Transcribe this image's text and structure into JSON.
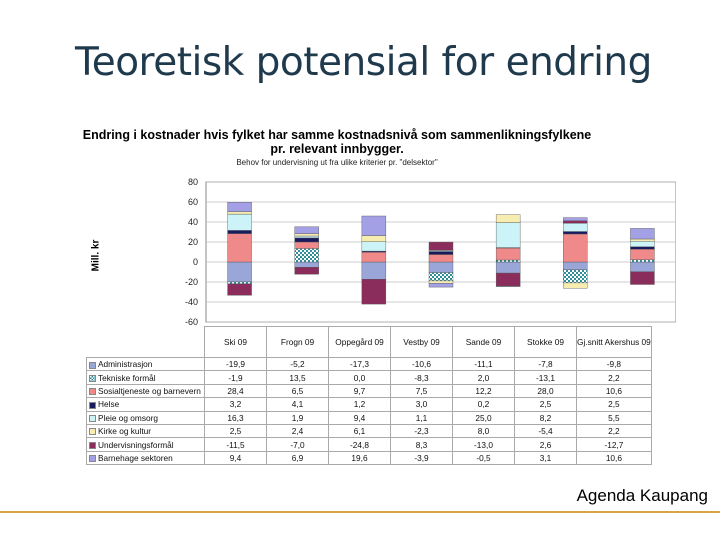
{
  "slide": {
    "title": "Teoretisk potensial for endring",
    "brand": "Agenda Kaupang"
  },
  "chart_data": {
    "type": "bar",
    "stacked": true,
    "title": "Endring i kostnader hvis fylket har samme kostnadsnivå som sammenlikningsfylkene pr. relevant innbygger.",
    "subtitle": "Behov for undervisning ut fra ulike kriterier pr. \"delsektor\"",
    "ylabel": "Mill. kr",
    "ylim": [
      -60,
      80
    ],
    "yticks": [
      "80",
      "60",
      "40",
      "20",
      "0",
      "-20",
      "-40",
      "-60"
    ],
    "categories": [
      "Ski 09",
      "Frogn 09",
      "Oppegård 09",
      "Vestby 09",
      "Sande 09",
      "Stokke 09",
      "Gj.snitt Akershus 09"
    ],
    "series": [
      {
        "name": "Administrasjon",
        "color": "#9aa6d8",
        "pattern": "solid",
        "values": [
          "-19,9",
          "-5,2",
          "-17,3",
          "-10,6",
          "-11,1",
          "-7,8",
          "-9,8"
        ],
        "nums": [
          -19.9,
          -5.2,
          -17.3,
          -10.6,
          -11.1,
          -7.8,
          -9.8
        ]
      },
      {
        "name": "Tekniske formål",
        "color": "#2e8f99",
        "pattern": "check",
        "values": [
          "-1,9",
          "13,5",
          "0,0",
          "-8,3",
          "2,0",
          "-13,1",
          "2,2"
        ],
        "nums": [
          -1.9,
          13.5,
          0.0,
          -8.3,
          2.0,
          -13.1,
          2.2
        ]
      },
      {
        "name": "Sosialtjeneste og barnevern",
        "color": "#f08a8a",
        "pattern": "solid",
        "values": [
          "28,4",
          "6,5",
          "9,7",
          "7,5",
          "12,2",
          "28,0",
          "10,6"
        ],
        "nums": [
          28.4,
          6.5,
          9.7,
          7.5,
          12.2,
          28.0,
          10.6
        ]
      },
      {
        "name": "Helse",
        "color": "#1a1a5e",
        "pattern": "solid",
        "values": [
          "3,2",
          "4,1",
          "1,2",
          "3,0",
          "0,2",
          "2,5",
          "2,5"
        ],
        "nums": [
          3.2,
          4.1,
          1.2,
          3.0,
          0.2,
          2.5,
          2.5
        ]
      },
      {
        "name": "Pleie og omsorg",
        "color": "#ccf3f8",
        "pattern": "solid",
        "values": [
          "16,3",
          "1,9",
          "9,4",
          "1,1",
          "25,0",
          "8,2",
          "5,5"
        ],
        "nums": [
          16.3,
          1.9,
          9.4,
          1.1,
          25.0,
          8.2,
          5.5
        ]
      },
      {
        "name": "Kirke og kultur",
        "color": "#f7edb0",
        "pattern": "solid",
        "values": [
          "2,5",
          "2,4",
          "6,1",
          "-2,3",
          "8,0",
          "-5,4",
          "2,2"
        ],
        "nums": [
          2.5,
          2.4,
          6.1,
          -2.3,
          8.0,
          -5.4,
          2.2
        ]
      },
      {
        "name": "Undervisningsformål",
        "color": "#8b2d5c",
        "pattern": "solid",
        "values": [
          "-11,5",
          "-7,0",
          "-24,8",
          "8,3",
          "-13,0",
          "2,6",
          "-12,7"
        ],
        "nums": [
          -11.5,
          -7.0,
          -24.8,
          8.3,
          -13.0,
          2.6,
          -12.7
        ]
      },
      {
        "name": "Barnehage sektoren",
        "color": "#a4a0e6",
        "pattern": "solid",
        "values": [
          "9,4",
          "6,9",
          "19,6",
          "-3,9",
          "-0,5",
          "3,1",
          "10,6"
        ],
        "nums": [
          9.4,
          6.9,
          19.6,
          -3.9,
          -0.5,
          3.1,
          10.6
        ]
      }
    ]
  }
}
